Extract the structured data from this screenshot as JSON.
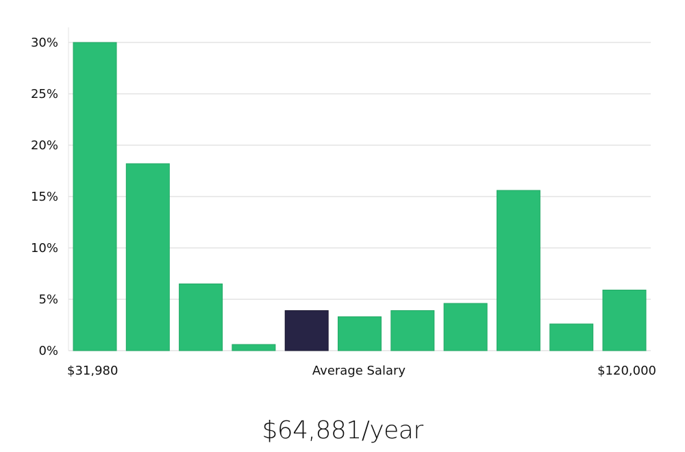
{
  "chart_data": {
    "type": "bar",
    "values": [
      30,
      18.2,
      6.5,
      0.6,
      3.9,
      3.3,
      3.9,
      4.6,
      15.6,
      2.6,
      5.9
    ],
    "highlight_index": 4,
    "ylim": [
      0,
      30
    ],
    "y_ticks": [
      {
        "value": 0,
        "label": "0%"
      },
      {
        "value": 5,
        "label": "5%"
      },
      {
        "value": 10,
        "label": "10%"
      },
      {
        "value": 15,
        "label": "15%"
      },
      {
        "value": 20,
        "label": "20%"
      },
      {
        "value": 25,
        "label": "25%"
      },
      {
        "value": 30,
        "label": "30%"
      }
    ],
    "x_labels": {
      "min": "$31,980",
      "middle": "Average Salary",
      "max": "$120,000"
    },
    "grid": true,
    "colors": {
      "bar": "#2abe75",
      "highlight": "#272445",
      "grid": "#e3e3e3"
    }
  },
  "summary": {
    "salary": "$64,881/year"
  }
}
